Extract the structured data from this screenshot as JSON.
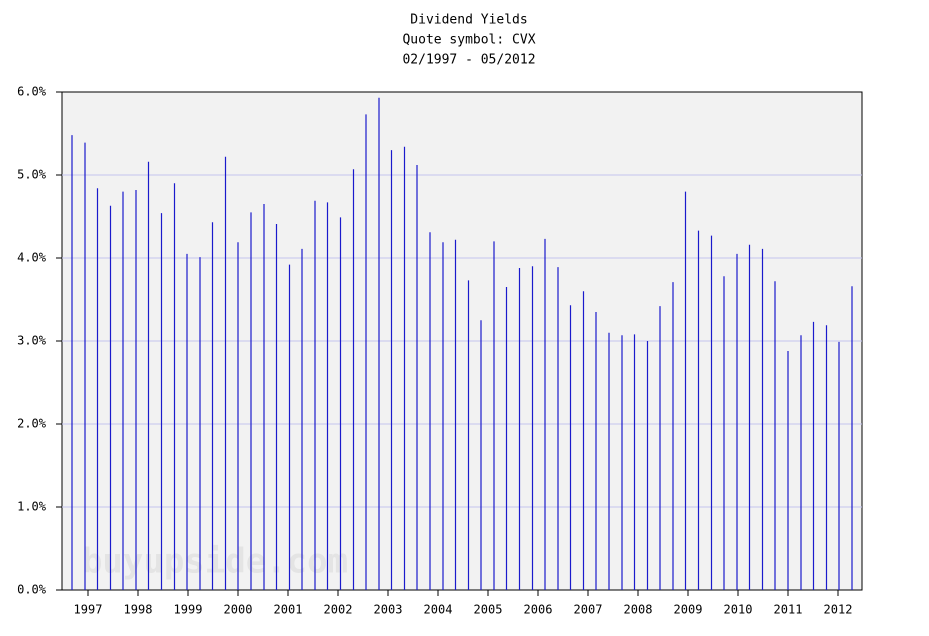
{
  "chart_data": {
    "type": "spike",
    "title": "Dividend Yields",
    "subtitle": "Quote symbol: CVX",
    "date_range": "02/1997 - 05/2012",
    "watermark": "buyupside.com",
    "color": "#1a1acc",
    "grid": true,
    "x": [
      1996.68,
      1996.94,
      1997.19,
      1997.45,
      1997.7,
      1997.96,
      1998.21,
      1998.47,
      1998.73,
      1998.98,
      1999.24,
      1999.49,
      1999.75,
      2000.0,
      2000.26,
      2000.52,
      2000.77,
      2001.03,
      2001.28,
      2001.54,
      2001.79,
      2002.05,
      2002.31,
      2002.56,
      2002.82,
      2003.07,
      2003.33,
      2003.58,
      2003.84,
      2004.1,
      2004.35,
      2004.61,
      2004.86,
      2005.12,
      2005.37,
      2005.63,
      2005.89,
      2006.14,
      2006.4,
      2006.65,
      2006.91,
      2007.16,
      2007.42,
      2007.68,
      2007.93,
      2008.19,
      2008.44,
      2008.7,
      2008.95,
      2009.21,
      2009.47,
      2009.72,
      2009.98,
      2010.23,
      2010.49,
      2010.74,
      2011.0,
      2011.26,
      2011.51,
      2011.77,
      2012.02,
      2012.28
    ],
    "values": [
      5.48,
      5.39,
      4.84,
      4.63,
      4.8,
      4.82,
      5.16,
      4.54,
      4.9,
      4.05,
      4.01,
      4.43,
      5.22,
      4.19,
      4.55,
      4.65,
      4.41,
      3.92,
      4.11,
      4.69,
      4.67,
      4.49,
      5.07,
      5.73,
      5.93,
      5.3,
      5.34,
      5.12,
      4.31,
      4.19,
      4.22,
      3.73,
      3.25,
      4.2,
      3.65,
      3.88,
      3.9,
      4.23,
      3.89,
      3.43,
      3.6,
      3.35,
      3.1,
      3.07,
      3.08,
      3.0,
      3.42,
      3.71,
      4.8,
      4.33,
      4.27,
      3.78,
      4.05,
      4.16,
      4.11,
      3.72,
      2.88,
      3.07,
      3.23,
      3.19,
      2.99,
      3.66
    ],
    "xlim": [
      1996.48,
      2012.48
    ],
    "xticks": [
      1997,
      1998,
      1999,
      2000,
      2001,
      2002,
      2003,
      2004,
      2005,
      2006,
      2007,
      2008,
      2009,
      2010,
      2011,
      2012
    ],
    "ylim": [
      0,
      6
    ],
    "yticks": [
      {
        "value": 0,
        "label": "0.0%"
      },
      {
        "value": 1,
        "label": "1.0%"
      },
      {
        "value": 2,
        "label": "2.0%"
      },
      {
        "value": 3,
        "label": "3.0%"
      },
      {
        "value": 4,
        "label": "4.0%"
      },
      {
        "value": 5,
        "label": "5.0%"
      },
      {
        "value": 6,
        "label": "6.0%"
      }
    ]
  }
}
